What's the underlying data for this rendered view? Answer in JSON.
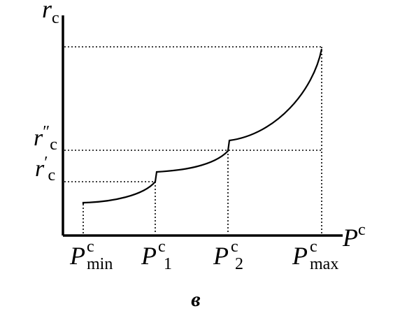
{
  "diagram": {
    "y_axis_symbol": "r",
    "y_axis_sub": "c",
    "x_axis_symbol": "P",
    "x_axis_sup": "c",
    "y_ticks": [
      {
        "symbol": "r",
        "prime": "″",
        "sub": "c"
      },
      {
        "symbol": "r",
        "prime": "′",
        "sub": "c"
      }
    ],
    "x_ticks": [
      {
        "symbol": "P",
        "sup": "c",
        "sub": "min"
      },
      {
        "symbol": "P",
        "sup": "c",
        "sub": "1"
      },
      {
        "symbol": "P",
        "sup": "c",
        "sub": "2"
      },
      {
        "symbol": "P",
        "sup": "c",
        "sub": "max"
      }
    ],
    "caption": "в"
  }
}
